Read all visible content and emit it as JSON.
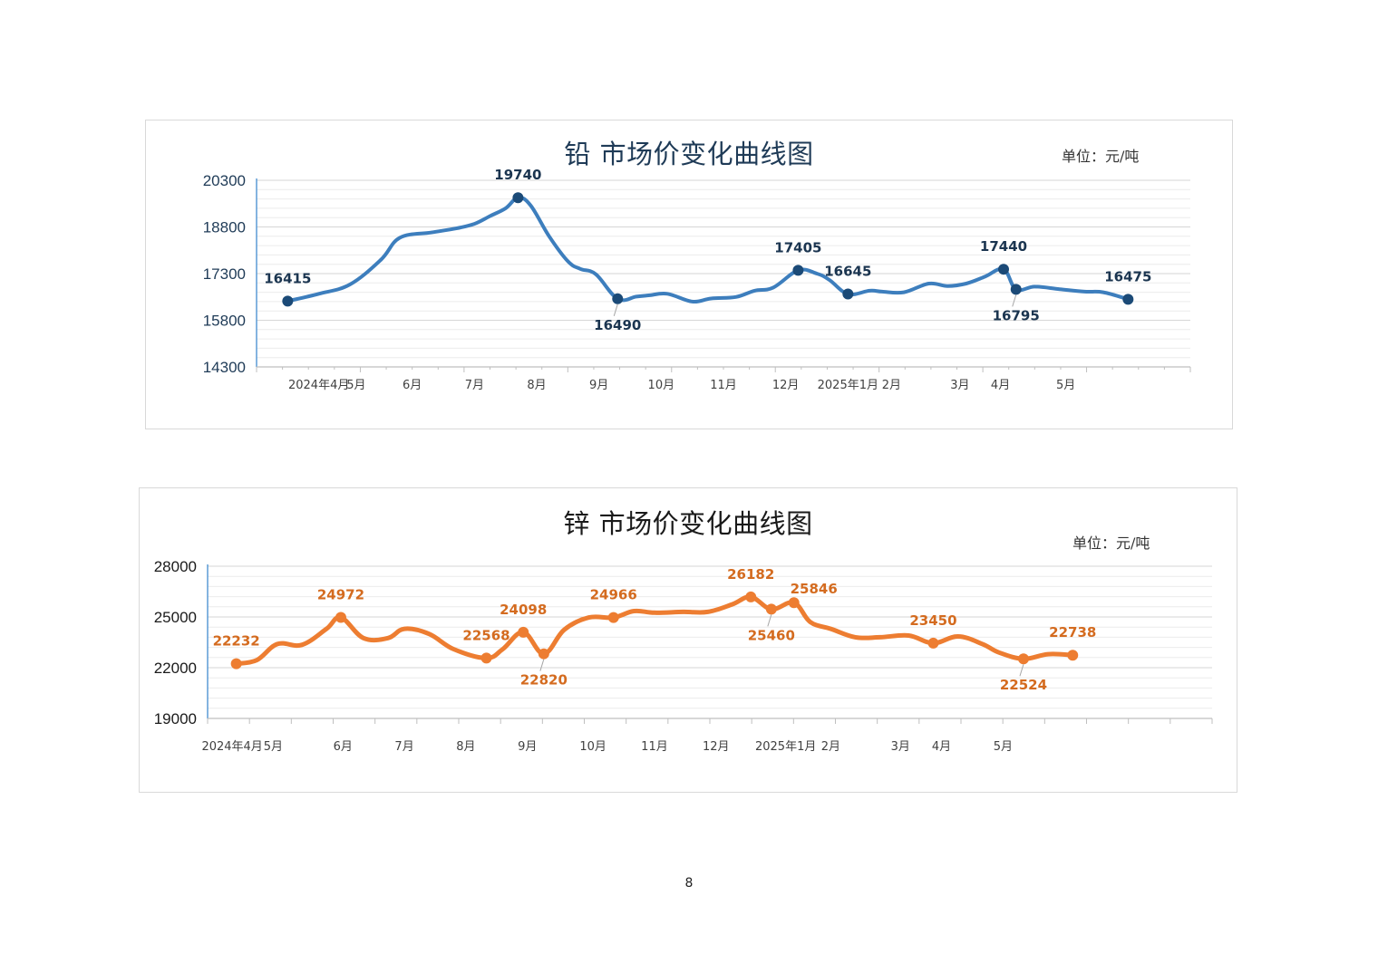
{
  "page_number": "8",
  "chart_data": [
    {
      "type": "line",
      "title": "铅 市场价变化曲线图",
      "unit": "单位：元/吨",
      "ylim": [
        14300,
        20300
      ],
      "yticks": [
        20300,
        18800,
        17300,
        15800,
        14300
      ],
      "xlim": [
        0,
        15
      ],
      "xtick_labels": [
        {
          "x": 1.0,
          "label": "2024年4月"
        },
        {
          "x": 1.6,
          "label": "5月"
        },
        {
          "x": 2.5,
          "label": "6月"
        },
        {
          "x": 3.5,
          "label": "7月"
        },
        {
          "x": 4.5,
          "label": "8月"
        },
        {
          "x": 5.5,
          "label": "9月"
        },
        {
          "x": 6.5,
          "label": "10月"
        },
        {
          "x": 7.5,
          "label": "11月"
        },
        {
          "x": 8.5,
          "label": "12月"
        },
        {
          "x": 9.5,
          "label": "2025年1月"
        },
        {
          "x": 10.2,
          "label": "2月"
        },
        {
          "x": 11.3,
          "label": "3月"
        },
        {
          "x": 11.95,
          "label": "4月"
        },
        {
          "x": 13.0,
          "label": "5月"
        }
      ],
      "grid": true,
      "color": "#3d7ebd",
      "marker_color": "#1b4a77",
      "label_color": "#1b3550",
      "series": [
        {
          "x": [
            0.5,
            1.0,
            1.5,
            2.0,
            2.3,
            2.8,
            3.2,
            3.5,
            3.75,
            4.0,
            4.2,
            4.4,
            4.7,
            5.0,
            5.2,
            5.45,
            5.8,
            6.1,
            6.3,
            6.6,
            7.0,
            7.3,
            7.7,
            8.0,
            8.3,
            8.7,
            9.0,
            9.2,
            9.5,
            9.85,
            10.05,
            10.4,
            10.8,
            11.1,
            11.4,
            11.7,
            12.0,
            12.2,
            12.5,
            12.9,
            13.3,
            13.6,
            14.0
          ],
          "y": [
            16415,
            16650,
            16950,
            17750,
            18450,
            18620,
            18750,
            18900,
            19150,
            19400,
            19740,
            19500,
            18500,
            17700,
            17450,
            17280,
            16490,
            16560,
            16600,
            16650,
            16400,
            16500,
            16550,
            16750,
            16850,
            17405,
            17300,
            17100,
            16645,
            16750,
            16720,
            16700,
            16980,
            16900,
            16980,
            17200,
            17440,
            16795,
            16880,
            16800,
            16720,
            16700,
            16475
          ]
        }
      ],
      "labeled_points": [
        {
          "x": 0.5,
          "y": 16415,
          "label": "16415",
          "pos": "above",
          "marker": true
        },
        {
          "x": 4.2,
          "y": 19740,
          "label": "19740",
          "pos": "above",
          "marker": true
        },
        {
          "x": 5.8,
          "y": 16490,
          "label": "16490",
          "pos": "below",
          "marker": true
        },
        {
          "x": 8.7,
          "y": 17405,
          "label": "17405",
          "pos": "above",
          "marker": true
        },
        {
          "x": 9.5,
          "y": 16645,
          "label": "16645",
          "pos": "above",
          "marker": true
        },
        {
          "x": 12.0,
          "y": 17440,
          "label": "17440",
          "pos": "above",
          "marker": true
        },
        {
          "x": 12.2,
          "y": 16795,
          "label": "16795",
          "pos": "below",
          "marker": true
        },
        {
          "x": 14.0,
          "y": 16475,
          "label": "16475",
          "pos": "above",
          "marker": true
        }
      ]
    },
    {
      "type": "line",
      "title": "锌 市场价变化曲线图",
      "unit": "单位：元/吨",
      "ylim": [
        19000,
        28000
      ],
      "yticks": [
        28000,
        25000,
        22000,
        19000
      ],
      "xlim": [
        0,
        24.5
      ],
      "xtick_labels": [
        {
          "x": 0.6,
          "label": "2024年4月"
        },
        {
          "x": 1.6,
          "label": "5月"
        },
        {
          "x": 3.3,
          "label": "6月"
        },
        {
          "x": 4.8,
          "label": "7月"
        },
        {
          "x": 6.3,
          "label": "8月"
        },
        {
          "x": 7.8,
          "label": "9月"
        },
        {
          "x": 9.4,
          "label": "10月"
        },
        {
          "x": 10.9,
          "label": "11月"
        },
        {
          "x": 12.4,
          "label": "12月"
        },
        {
          "x": 14.1,
          "label": "2025年1月"
        },
        {
          "x": 15.2,
          "label": "2月"
        },
        {
          "x": 16.9,
          "label": "3月"
        },
        {
          "x": 17.9,
          "label": "4月"
        },
        {
          "x": 19.4,
          "label": "5月"
        }
      ],
      "grid": true,
      "color": "#ed7d31",
      "marker_color": "#ed7d31",
      "label_color": "#d46b1f",
      "series": [
        {
          "x": [
            0.7,
            1.2,
            1.7,
            2.3,
            2.9,
            3.25,
            3.8,
            4.4,
            4.8,
            5.4,
            6.0,
            6.8,
            7.2,
            7.7,
            8.2,
            8.7,
            9.3,
            9.9,
            10.4,
            10.9,
            11.6,
            12.2,
            12.8,
            13.25,
            13.75,
            14.3,
            14.7,
            15.2,
            15.8,
            16.4,
            17.1,
            17.7,
            18.3,
            18.9,
            19.3,
            19.9,
            20.5,
            21.1
          ],
          "y": [
            22232,
            22450,
            23400,
            23350,
            24300,
            24972,
            23750,
            23750,
            24300,
            24000,
            23100,
            22568,
            23100,
            24098,
            22820,
            24250,
            24966,
            24966,
            25350,
            25250,
            25300,
            25300,
            25750,
            26182,
            25460,
            25846,
            24700,
            24300,
            23800,
            23800,
            23900,
            23450,
            23850,
            23400,
            22900,
            22524,
            22800,
            22738
          ]
        }
      ],
      "labeled_points": [
        {
          "x": 0.7,
          "y": 22232,
          "label": "22232",
          "pos": "above",
          "marker": true
        },
        {
          "x": 3.25,
          "y": 24972,
          "label": "24972",
          "pos": "above",
          "marker": true
        },
        {
          "x": 6.8,
          "y": 22568,
          "label": "22568",
          "pos": "above",
          "marker": true
        },
        {
          "x": 7.7,
          "y": 24098,
          "label": "24098",
          "pos": "above",
          "marker": true
        },
        {
          "x": 8.2,
          "y": 22820,
          "label": "22820",
          "pos": "below",
          "marker": true
        },
        {
          "x": 9.9,
          "y": 24966,
          "label": "24966",
          "pos": "above",
          "marker": true
        },
        {
          "x": 13.25,
          "y": 26182,
          "label": "26182",
          "pos": "above",
          "marker": true
        },
        {
          "x": 13.75,
          "y": 25460,
          "label": "25460",
          "pos": "below",
          "marker": true
        },
        {
          "x": 14.3,
          "y": 25846,
          "label": "25846",
          "pos": "above-right",
          "marker": true
        },
        {
          "x": 17.7,
          "y": 23450,
          "label": "23450",
          "pos": "above",
          "marker": true
        },
        {
          "x": 19.9,
          "y": 22524,
          "label": "22524",
          "pos": "below",
          "marker": true
        },
        {
          "x": 21.1,
          "y": 22738,
          "label": "22738",
          "pos": "above",
          "marker": true
        }
      ]
    }
  ]
}
